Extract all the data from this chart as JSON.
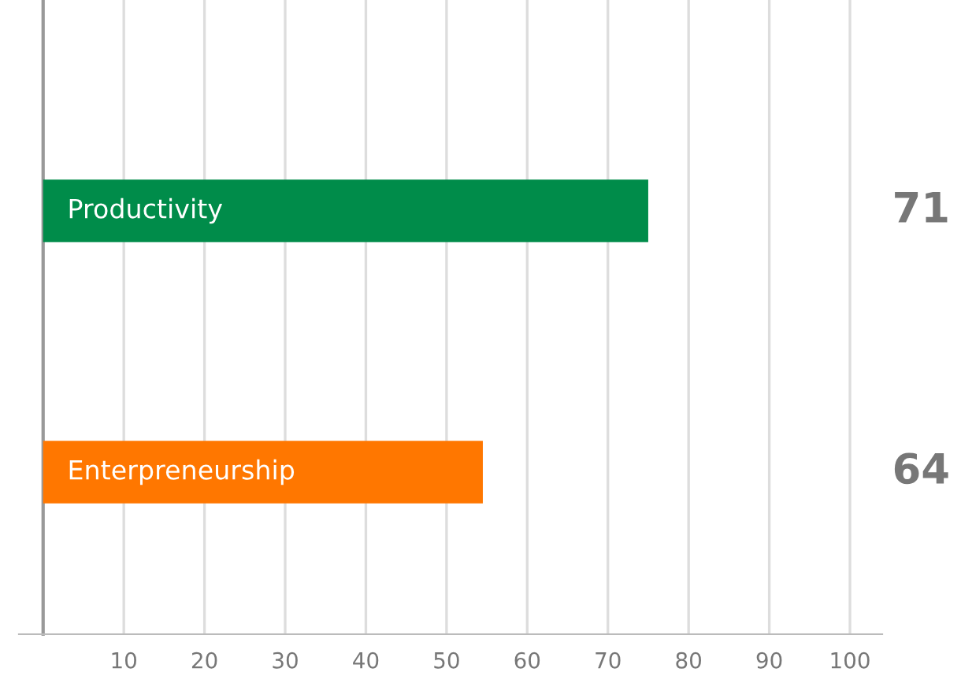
{
  "chart_data": {
    "type": "bar",
    "orientation": "horizontal",
    "categories": [
      "Productivity",
      "Enterpreneurship"
    ],
    "values": [
      75,
      54.5
    ],
    "colors": [
      "#008c4a",
      "#ff7700"
    ],
    "annotations": [
      "71",
      "64"
    ],
    "xlim": [
      -3,
      104
    ],
    "xticks": [
      {
        "value": 0,
        "label": null
      },
      10,
      20,
      30,
      40,
      50,
      60,
      70,
      80,
      90,
      100
    ],
    "grid": "x"
  }
}
